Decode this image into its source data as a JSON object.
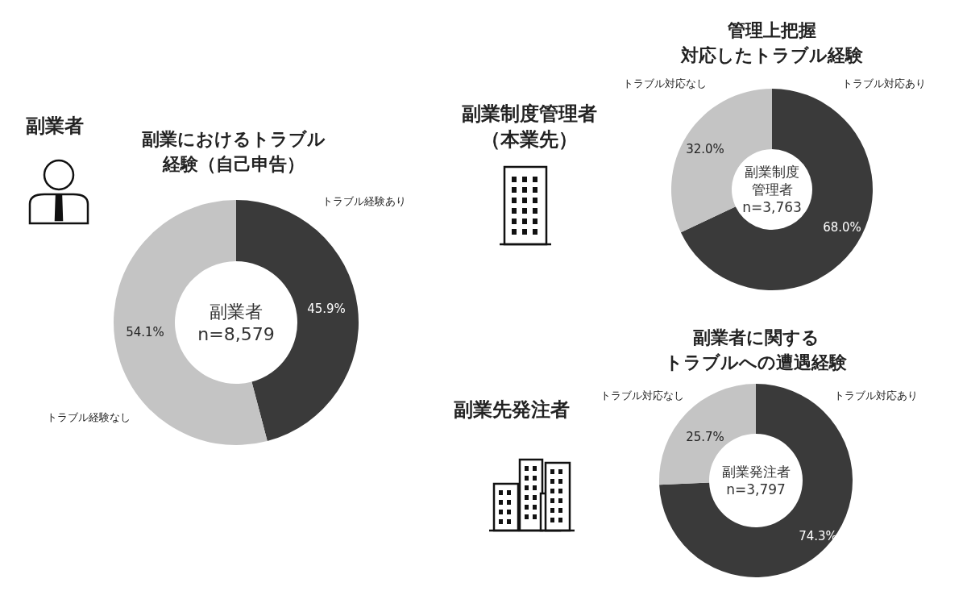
{
  "chart_data": [
    {
      "type": "donut",
      "title": "副業におけるトラブル経験（自己申告）",
      "subtitle": "副業者",
      "categories": [
        "トラブル経験あり",
        "トラブル経験なし"
      ],
      "values": [
        45.9,
        54.1
      ],
      "value_labels": [
        "45.9%",
        "54.1%"
      ],
      "colors": [
        "#3a3a3a",
        "#c4c4c4"
      ],
      "annotations": [
        "副業者\nn=8,579"
      ]
    },
    {
      "type": "donut",
      "title": "管理上把握対応したトラブル経験",
      "subtitle": "副業制度管理者（本業先）",
      "categories": [
        "トラブル対応あり",
        "トラブル対応なし"
      ],
      "values": [
        68.0,
        32.0
      ],
      "value_labels": [
        "68.0%",
        "32.0%"
      ],
      "colors": [
        "#3a3a3a",
        "#c4c4c4"
      ],
      "annotations": [
        "副業制度管理者\nn=3,763"
      ]
    },
    {
      "type": "donut",
      "title": "副業者に関するトラブルへの遭遇経験",
      "subtitle": "副業先発注者",
      "categories": [
        "トラブル対応あり",
        "トラブル対応なし"
      ],
      "values": [
        74.3,
        25.7
      ],
      "value_labels": [
        "74.3%",
        "25.7%"
      ],
      "colors": [
        "#3a3a3a",
        "#c4c4c4"
      ],
      "annotations": [
        "副業発注者\nn=3,797"
      ]
    }
  ]
}
